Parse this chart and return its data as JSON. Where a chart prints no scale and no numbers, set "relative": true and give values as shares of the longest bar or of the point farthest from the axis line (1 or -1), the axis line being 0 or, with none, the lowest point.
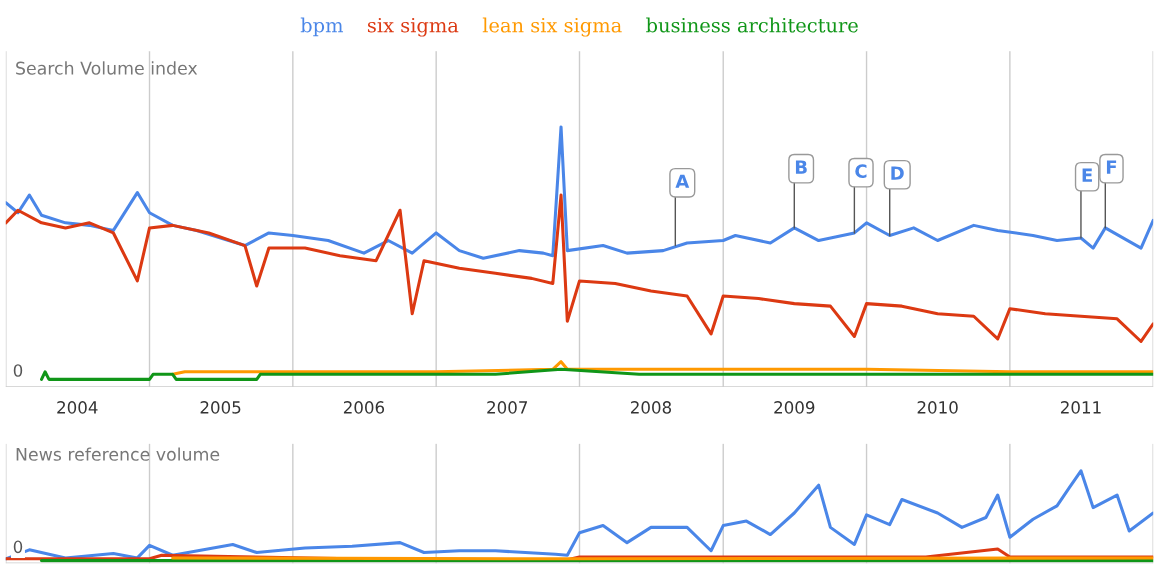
{
  "chart_data": [
    {
      "type": "line",
      "title": "Search Volume index",
      "relative": true,
      "legend": "top",
      "grid": "x",
      "tick_labels": "x",
      "xlim": [
        "2004-01-01",
        "2012-01-01"
      ],
      "xticks": [
        {
          "value": "2004-01-01",
          "label": null
        },
        {
          "value": "2004-07-01",
          "label": "2004"
        },
        {
          "value": "2005-01-01",
          "label": null
        },
        {
          "value": "2005-07-01",
          "label": "2005"
        },
        {
          "value": "2006-01-01",
          "label": null
        },
        {
          "value": "2006-07-01",
          "label": "2006"
        },
        {
          "value": "2007-01-01",
          "label": null
        },
        {
          "value": "2007-07-01",
          "label": "2007"
        },
        {
          "value": "2008-01-01",
          "label": null
        },
        {
          "value": "2008-07-01",
          "label": "2008"
        },
        {
          "value": "2009-01-01",
          "label": null
        },
        {
          "value": "2009-07-01",
          "label": "2009"
        },
        {
          "value": "2010-01-01",
          "label": null
        },
        {
          "value": "2010-07-01",
          "label": "2010"
        },
        {
          "value": "2011-01-01",
          "label": null
        },
        {
          "value": "2011-07-01",
          "label": "2011"
        },
        {
          "value": "2012-01-01",
          "label": null
        }
      ],
      "annotations": [
        "0",
        {
          "text": "A",
          "x": "2008-09",
          "y": 0.53
        },
        {
          "text": "B",
          "x": "2009-07",
          "y": 0.6
        },
        {
          "text": "C",
          "x": "2009-12",
          "y": 0.58
        },
        {
          "text": "D",
          "x": "2010-03",
          "y": 0.57
        },
        {
          "text": "E",
          "x": "2011-07",
          "y": 0.56
        },
        {
          "text": "F",
          "x": "2011-09",
          "y": 0.6
        }
      ],
      "series": [
        {
          "name": "bpm",
          "color": "#4a86e8",
          "x": [
            "2004-01",
            "2004-02",
            "2004-03",
            "2004-04",
            "2004-06",
            "2004-08",
            "2004-10",
            "2004-12",
            "2005-01",
            "2005-03",
            "2005-05",
            "2005-07",
            "2005-09",
            "2005-11",
            "2006-01",
            "2006-04",
            "2006-07",
            "2006-09",
            "2006-11",
            "2007-01",
            "2007-03",
            "2007-05",
            "2007-08",
            "2007-10",
            "2007-10-25",
            "2007-11-15",
            "2007-12",
            "2008-03",
            "2008-05",
            "2008-08",
            "2008-10",
            "2009-01",
            "2009-02",
            "2009-05",
            "2009-07",
            "2009-09",
            "2009-12",
            "2010-01",
            "2010-03",
            "2010-05",
            "2010-07",
            "2010-10",
            "2010-12",
            "2011-03",
            "2011-05",
            "2011-07",
            "2011-08",
            "2011-09",
            "2011-12",
            "2012-01"
          ],
          "values": [
            0.7,
            0.66,
            0.73,
            0.65,
            0.62,
            0.61,
            0.59,
            0.74,
            0.66,
            0.61,
            0.59,
            0.56,
            0.53,
            0.58,
            0.57,
            0.55,
            0.5,
            0.55,
            0.5,
            0.58,
            0.51,
            0.48,
            0.51,
            0.5,
            0.49,
            1.0,
            0.51,
            0.53,
            0.5,
            0.51,
            0.54,
            0.55,
            0.57,
            0.54,
            0.6,
            0.55,
            0.58,
            0.62,
            0.57,
            0.6,
            0.55,
            0.61,
            0.59,
            0.57,
            0.55,
            0.56,
            0.52,
            0.6,
            0.52,
            0.63
          ]
        },
        {
          "name": "six sigma",
          "color": "#dc3912",
          "x": [
            "2004-01",
            "2004-02",
            "2004-04",
            "2004-06",
            "2004-08",
            "2004-10",
            "2004-12",
            "2005-01",
            "2005-03",
            "2005-06",
            "2005-09",
            "2005-10",
            "2005-11",
            "2006-02",
            "2006-05",
            "2006-08",
            "2006-10",
            "2006-11",
            "2006-12",
            "2007-03",
            "2007-06",
            "2007-09",
            "2007-10-25",
            "2007-11-15",
            "2007-12",
            "2008-01",
            "2008-04",
            "2008-07",
            "2008-10",
            "2008-12",
            "2009-01",
            "2009-04",
            "2009-07",
            "2009-10",
            "2009-12",
            "2010-01",
            "2010-04",
            "2010-07",
            "2010-10",
            "2010-12",
            "2011-01",
            "2011-04",
            "2011-07",
            "2011-10",
            "2011-12",
            "2012-01"
          ],
          "values": [
            0.62,
            0.67,
            0.62,
            0.6,
            0.62,
            0.58,
            0.39,
            0.6,
            0.61,
            0.58,
            0.53,
            0.37,
            0.52,
            0.52,
            0.49,
            0.47,
            0.67,
            0.26,
            0.47,
            0.44,
            0.42,
            0.4,
            0.38,
            0.73,
            0.23,
            0.39,
            0.38,
            0.35,
            0.33,
            0.18,
            0.33,
            0.32,
            0.3,
            0.29,
            0.17,
            0.3,
            0.29,
            0.26,
            0.25,
            0.16,
            0.28,
            0.26,
            0.25,
            0.24,
            0.15,
            0.22
          ]
        },
        {
          "name": "lean six sigma",
          "color": "#ff9900",
          "x": [
            "2005-03",
            "2005-04",
            "2006-01",
            "2007-01",
            "2007-10-25",
            "2007-11-15",
            "2007-12",
            "2009-01",
            "2010-01",
            "2011-01",
            "2012-01"
          ],
          "values": [
            0.02,
            0.03,
            0.03,
            0.03,
            0.04,
            0.07,
            0.04,
            0.04,
            0.04,
            0.03,
            0.03
          ]
        },
        {
          "name": "business architecture",
          "color": "#109618",
          "x": [
            "2004-04",
            "2004-04-10",
            "2004-04-20",
            "2005-01",
            "2005-01-10",
            "2005-03",
            "2005-03-10",
            "2005-10",
            "2005-10-10",
            "2006-06",
            "2007-06",
            "2007-11-15",
            "2008-06",
            "2010-01",
            "2012-01"
          ],
          "values": [
            0,
            0.03,
            0,
            0,
            0.02,
            0.02,
            0,
            0,
            0.02,
            0.02,
            0.02,
            0.04,
            0.02,
            0.02,
            0.02
          ]
        }
      ]
    },
    {
      "type": "line",
      "title": "News reference volume",
      "relative": true,
      "grid": "x",
      "tick_labels": false,
      "xlim": [
        "2004-01-01",
        "2012-01-01"
      ],
      "xticks": [
        {
          "value": "2004-01-01",
          "label": null
        },
        {
          "value": "2005-01-01",
          "label": null
        },
        {
          "value": "2006-01-01",
          "label": null
        },
        {
          "value": "2007-01-01",
          "label": null
        },
        {
          "value": "2008-01-01",
          "label": null
        },
        {
          "value": "2009-01-01",
          "label": null
        },
        {
          "value": "2010-01-01",
          "label": null
        },
        {
          "value": "2011-01-01",
          "label": null
        },
        {
          "value": "2012-01-01",
          "label": null
        }
      ],
      "annotations": [
        "0"
      ],
      "series": [
        {
          "color": "#4a86e8",
          "x": [
            "2004-01",
            "2004-03",
            "2004-06",
            "2004-10",
            "2004-12",
            "2005-01",
            "2005-03",
            "2005-08",
            "2005-10",
            "2006-02",
            "2006-06",
            "2006-10",
            "2006-12",
            "2007-03",
            "2007-06",
            "2007-11",
            "2007-12",
            "2008-01",
            "2008-03",
            "2008-05",
            "2008-07",
            "2008-10",
            "2008-12",
            "2009-01",
            "2009-03",
            "2009-05",
            "2009-07",
            "2009-09",
            "2009-10",
            "2009-12",
            "2010-01",
            "2010-03",
            "2010-04",
            "2010-07",
            "2010-09",
            "2010-11",
            "2010-12",
            "2011-01",
            "2011-03",
            "2011-05",
            "2011-06",
            "2011-07",
            "2011-08",
            "2011-10",
            "2011-11",
            "2012-01"
          ],
          "values": [
            0.02,
            0.12,
            0.03,
            0.08,
            0.03,
            0.17,
            0.06,
            0.18,
            0.09,
            0.14,
            0.16,
            0.2,
            0.09,
            0.11,
            0.11,
            0.07,
            0.06,
            0.31,
            0.39,
            0.2,
            0.37,
            0.37,
            0.11,
            0.39,
            0.44,
            0.29,
            0.53,
            0.84,
            0.37,
            0.18,
            0.51,
            0.4,
            0.68,
            0.53,
            0.37,
            0.48,
            0.73,
            0.26,
            0.46,
            0.61,
            0.81,
            1.0,
            0.59,
            0.73,
            0.33,
            0.53
          ]
        },
        {
          "color": "#dc3912",
          "x": [
            "2004-01",
            "2005-01",
            "2005-02",
            "2006-06",
            "2007-12",
            "2008-01",
            "2009-01",
            "2010-06",
            "2010-12",
            "2011-01",
            "2012-01"
          ],
          "values": [
            0.02,
            0.02,
            0.06,
            0.02,
            0.01,
            0.04,
            0.04,
            0.04,
            0.13,
            0.04,
            0.04
          ]
        },
        {
          "color": "#109618",
          "x": [
            "2004-04",
            "2012-01"
          ],
          "values": [
            0,
            0
          ]
        },
        {
          "color": "#ff9900",
          "x": [
            "2005-03",
            "2008-01",
            "2012-01"
          ],
          "values": [
            0.03,
            0.02,
            0.03
          ]
        }
      ]
    }
  ]
}
